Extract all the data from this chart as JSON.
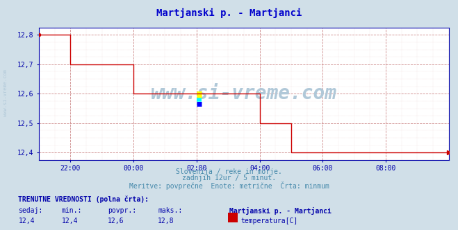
{
  "title": "Martjanski p. - Martjanci",
  "title_color": "#0000cc",
  "background_color": "#d0dfe8",
  "plot_bg_color": "#ffffff",
  "grid_color_major": "#cc8888",
  "line_color": "#cc0000",
  "line_width": 1.0,
  "ylim": [
    12.375,
    12.825
  ],
  "yticks": [
    12.4,
    12.5,
    12.6,
    12.7,
    12.8
  ],
  "xlim": [
    0,
    156
  ],
  "xtick_labels": [
    "22:00",
    "00:00",
    "02:00",
    "04:00",
    "06:00",
    "08:00"
  ],
  "xtick_positions": [
    12,
    36,
    60,
    84,
    108,
    132
  ],
  "subtitle_line1": "Slovenija / reke in morje.",
  "subtitle_line2": "zadnjih 12ur / 5 minut.",
  "subtitle_line3": "Meritve: povprečne  Enote: metrične  Črta: minmum",
  "subtitle_color": "#4488aa",
  "footer_title": "TRENUTNE VREDNOSTI (polna črta):",
  "footer_col_headers": [
    "sedaj:",
    "min.:",
    "povpr.:",
    "maks.:"
  ],
  "footer_col_values": [
    "12,4",
    "12,4",
    "12,6",
    "12,8"
  ],
  "footer_station": "Martjanski p. - Martjanci",
  "footer_param": "temperatura[C]",
  "footer_color": "#0000aa",
  "watermark_color": "#b0c8d8",
  "left_label": "www.si-vreme.com",
  "x_data": [
    0,
    12,
    12,
    36,
    36,
    60,
    60,
    84,
    84,
    96,
    96,
    108,
    108,
    156
  ],
  "y_data": [
    12.8,
    12.8,
    12.7,
    12.7,
    12.6,
    12.6,
    12.6,
    12.6,
    12.5,
    12.5,
    12.4,
    12.4,
    12.4,
    12.4
  ],
  "dot_color": "#cc0000",
  "legend_box_color": "#cc0000"
}
